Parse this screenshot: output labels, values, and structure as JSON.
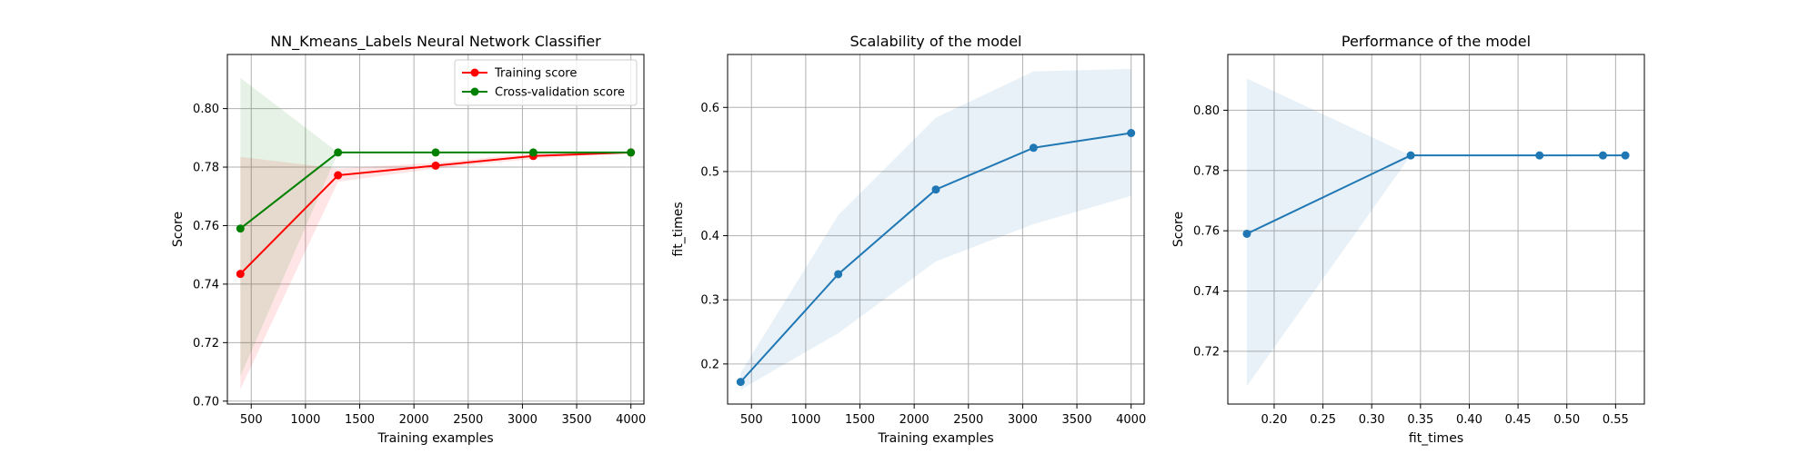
{
  "chart_data": [
    {
      "type": "line",
      "title": "NN_Kmeans_Labels Neural Network Classifier",
      "xlabel": "Training examples",
      "ylabel": "Score",
      "xlim": [
        280,
        4120
      ],
      "ylim": [
        0.699,
        0.8185
      ],
      "xticks": [
        500,
        1000,
        1500,
        2000,
        2500,
        3000,
        3500,
        4000
      ],
      "yticks": [
        0.7,
        0.72,
        0.74,
        0.76,
        0.78,
        0.8
      ],
      "ytick_decimals": 2,
      "grid": true,
      "legend": "top-right",
      "series": [
        {
          "name": "Training score",
          "color": "#ff0000",
          "x": [
            400,
            1300,
            2200,
            3100,
            4000
          ],
          "y": [
            0.7435,
            0.7772,
            0.7805,
            0.7838,
            0.785
          ],
          "band_lower": [
            0.704,
            0.775,
            0.7795,
            0.7828,
            0.785
          ],
          "band_upper": [
            0.7835,
            0.7795,
            0.7815,
            0.7848,
            0.785
          ]
        },
        {
          "name": "Cross-validation score",
          "color": "#008000",
          "x": [
            400,
            1300,
            2200,
            3100,
            4000
          ],
          "y": [
            0.759,
            0.785,
            0.785,
            0.785,
            0.785
          ],
          "band_lower": [
            0.7085,
            0.785,
            0.785,
            0.785,
            0.785
          ],
          "band_upper": [
            0.8105,
            0.785,
            0.785,
            0.785,
            0.785
          ]
        }
      ]
    },
    {
      "type": "line",
      "title": "Scalability of the model",
      "xlabel": "Training examples",
      "ylabel": "fit_times",
      "xlim": [
        280,
        4120
      ],
      "ylim": [
        0.1375,
        0.6825
      ],
      "xticks": [
        500,
        1000,
        1500,
        2000,
        2500,
        3000,
        3500,
        4000
      ],
      "yticks": [
        0.2,
        0.3,
        0.4,
        0.5,
        0.6
      ],
      "ytick_decimals": 1,
      "grid": true,
      "series": [
        {
          "color": "#1f77b4",
          "x": [
            400,
            1300,
            2200,
            3100,
            4000
          ],
          "y": [
            0.172,
            0.34,
            0.472,
            0.537,
            0.56
          ],
          "band_lower": [
            0.16,
            0.248,
            0.36,
            0.418,
            0.462
          ],
          "band_upper": [
            0.186,
            0.432,
            0.584,
            0.656,
            0.66
          ]
        }
      ]
    },
    {
      "type": "line",
      "title": "Performance of the model",
      "xlabel": "fit_times",
      "ylabel": "Score",
      "xlim": [
        0.1525,
        0.5795
      ],
      "ylim": [
        0.7025,
        0.8185
      ],
      "xticks": [
        0.2,
        0.25,
        0.3,
        0.35,
        0.4,
        0.45,
        0.5,
        0.55
      ],
      "yticks": [
        0.72,
        0.74,
        0.76,
        0.78,
        0.8
      ],
      "xtick_decimals": 2,
      "ytick_decimals": 2,
      "grid": true,
      "series": [
        {
          "color": "#1f77b4",
          "x": [
            0.172,
            0.34,
            0.472,
            0.537,
            0.56
          ],
          "y": [
            0.759,
            0.785,
            0.785,
            0.785,
            0.785
          ],
          "band_lower": [
            0.7085,
            0.785,
            0.785,
            0.785,
            0.785
          ],
          "band_upper": [
            0.8105,
            0.785,
            0.785,
            0.785,
            0.785
          ]
        }
      ]
    }
  ]
}
